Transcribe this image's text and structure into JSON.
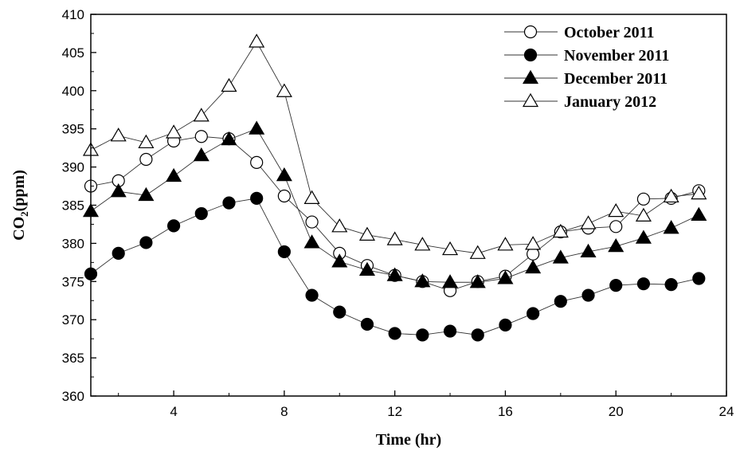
{
  "chart_data": {
    "type": "line",
    "xlabel": "Time (hr)",
    "ylabel": "CO",
    "ylabel_subscript": "2",
    "ylabel_suffix": "(ppm)",
    "xlim": [
      1,
      24
    ],
    "ylim": [
      360,
      410
    ],
    "x_ticks": [
      4,
      8,
      12,
      16,
      20,
      24
    ],
    "y_ticks": [
      360,
      365,
      370,
      375,
      380,
      385,
      390,
      395,
      400,
      405,
      410
    ],
    "legend_position": "top-right",
    "grid": false,
    "x": [
      1,
      2,
      3,
      4,
      5,
      6,
      7,
      8,
      9,
      10,
      11,
      12,
      13,
      14,
      15,
      16,
      17,
      18,
      19,
      20,
      21,
      22,
      23
    ],
    "series": [
      {
        "name": "October 2011",
        "marker": "circle-open",
        "values": [
          387.5,
          388.2,
          391.0,
          393.4,
          394.0,
          393.7,
          390.6,
          386.2,
          382.8,
          378.7,
          377.1,
          375.8,
          375.0,
          373.8,
          375.0,
          375.7,
          378.6,
          381.5,
          382.0,
          382.2,
          385.8,
          385.9,
          386.9
        ]
      },
      {
        "name": "November 2011",
        "marker": "circle-filled",
        "values": [
          376.0,
          378.7,
          380.1,
          382.3,
          383.9,
          385.3,
          385.9,
          378.9,
          373.2,
          371.0,
          369.4,
          368.2,
          368.0,
          368.5,
          368.0,
          369.3,
          370.8,
          372.4,
          373.2,
          374.5,
          374.7,
          374.6,
          375.4
        ]
      },
      {
        "name": "December 2011",
        "marker": "triangle-filled",
        "values": [
          384.2,
          386.8,
          386.3,
          388.8,
          391.5,
          393.6,
          395.0,
          388.9,
          380.1,
          377.6,
          376.5,
          375.8,
          375.0,
          374.9,
          374.9,
          375.4,
          376.8,
          378.1,
          378.9,
          379.6,
          380.7,
          382.0,
          383.7
        ]
      },
      {
        "name": "January 2012",
        "marker": "triangle-open",
        "values": [
          392.2,
          394.1,
          393.2,
          394.5,
          396.7,
          400.6,
          406.4,
          399.9,
          385.9,
          382.2,
          381.1,
          380.5,
          379.8,
          379.2,
          378.7,
          379.8,
          379.9,
          381.5,
          382.6,
          384.2,
          383.6,
          386.1,
          386.5
        ]
      }
    ]
  }
}
